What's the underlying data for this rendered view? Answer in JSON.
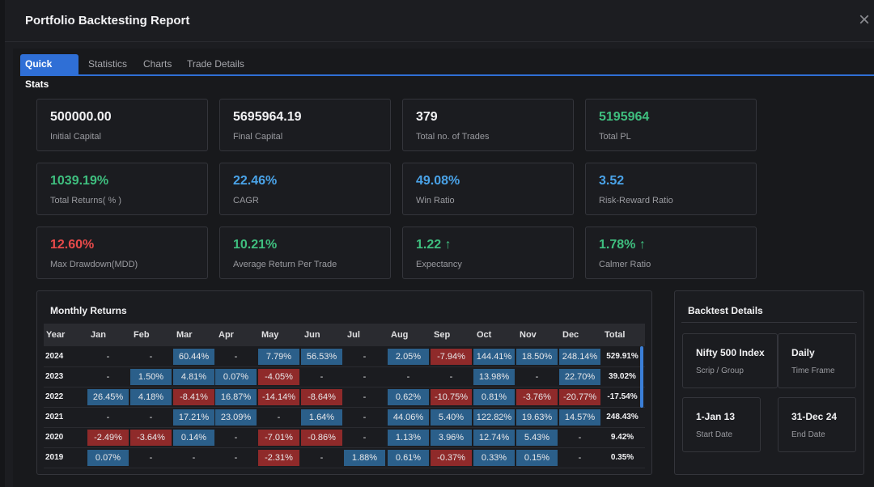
{
  "modal": {
    "title": "Portfolio Backtesting Report",
    "close_label": "×"
  },
  "tabs": [
    {
      "label": "Quick Stats",
      "active": true
    },
    {
      "label": "Statistics",
      "active": false
    },
    {
      "label": "Charts",
      "active": false
    },
    {
      "label": "Trade Details",
      "active": false
    }
  ],
  "stats": [
    {
      "value": "500000.00",
      "label": "Initial Capital",
      "color": "default"
    },
    {
      "value": "5695964.19",
      "label": "Final Capital",
      "color": "default"
    },
    {
      "value": "379",
      "label": "Total no. of Trades",
      "color": "default"
    },
    {
      "value": "5195964",
      "label": "Total PL",
      "color": "green"
    },
    {
      "value": "1039.19%",
      "label": "Total Returns( % )",
      "color": "green"
    },
    {
      "value": "22.46%",
      "label": "CAGR",
      "color": "blue"
    },
    {
      "value": "49.08%",
      "label": "Win Ratio",
      "color": "blue"
    },
    {
      "value": "3.52",
      "label": "Risk-Reward Ratio",
      "color": "blue"
    },
    {
      "value": "12.60%",
      "label": "Max Drawdown(MDD)",
      "color": "red"
    },
    {
      "value": "10.21%",
      "label": "Average Return Per Trade",
      "color": "green"
    },
    {
      "value": "1.22 ↑",
      "label": "Expectancy",
      "color": "green"
    },
    {
      "value": "1.78% ↑",
      "label": "Calmer Ratio",
      "color": "green"
    }
  ],
  "colors": {
    "green": "#3fbf7f",
    "blue": "#4aa3e8",
    "red": "#e84a4a",
    "accent": "#2f6fd6",
    "positive_cell": "#2b5f8a",
    "negative_cell": "#8f2a2a"
  },
  "monthly_returns": {
    "title": "Monthly Returns",
    "headers": [
      "Year",
      "Jan",
      "Feb",
      "Mar",
      "Apr",
      "May",
      "Jun",
      "Jul",
      "Aug",
      "Sep",
      "Oct",
      "Nov",
      "Dec",
      "Total"
    ],
    "rows": [
      {
        "year": "2024",
        "months": [
          "-",
          "-",
          "60.44%",
          "-",
          "7.79%",
          "56.53%",
          "-",
          "2.05%",
          "-7.94%",
          "144.41%",
          "18.50%",
          "248.14%"
        ],
        "total": "529.91%"
      },
      {
        "year": "2023",
        "months": [
          "-",
          "1.50%",
          "4.81%",
          "0.07%",
          "-4.05%",
          "-",
          "-",
          "-",
          "-",
          "13.98%",
          "-",
          "22.70%"
        ],
        "total": "39.02%"
      },
      {
        "year": "2022",
        "months": [
          "26.45%",
          "4.18%",
          "-8.41%",
          "16.87%",
          "-14.14%",
          "-8.64%",
          "-",
          "0.62%",
          "-10.75%",
          "0.81%",
          "-3.76%",
          "-20.77%"
        ],
        "total": "-17.54%"
      },
      {
        "year": "2021",
        "months": [
          "-",
          "-",
          "17.21%",
          "23.09%",
          "-",
          "1.64%",
          "-",
          "44.06%",
          "5.40%",
          "122.82%",
          "19.63%",
          "14.57%"
        ],
        "total": "248.43%"
      },
      {
        "year": "2020",
        "months": [
          "-2.49%",
          "-3.64%",
          "0.14%",
          "-",
          "-7.01%",
          "-0.86%",
          "-",
          "1.13%",
          "3.96%",
          "12.74%",
          "5.43%",
          "-"
        ],
        "total": "9.42%"
      },
      {
        "year": "2019",
        "months": [
          "0.07%",
          "-",
          "-",
          "-",
          "-2.31%",
          "-",
          "1.88%",
          "0.61%",
          "-0.37%",
          "0.33%",
          "0.15%",
          "-"
        ],
        "total": "0.35%"
      }
    ]
  },
  "backtest_details": {
    "title": "Backtest Details",
    "items": [
      {
        "value": "Nifty 500 Index",
        "label": "Scrip / Group"
      },
      {
        "value": "Daily",
        "label": "Time Frame"
      },
      {
        "value": "1-Jan 13",
        "label": "Start Date"
      },
      {
        "value": "31-Dec 24",
        "label": "End Date"
      }
    ]
  }
}
